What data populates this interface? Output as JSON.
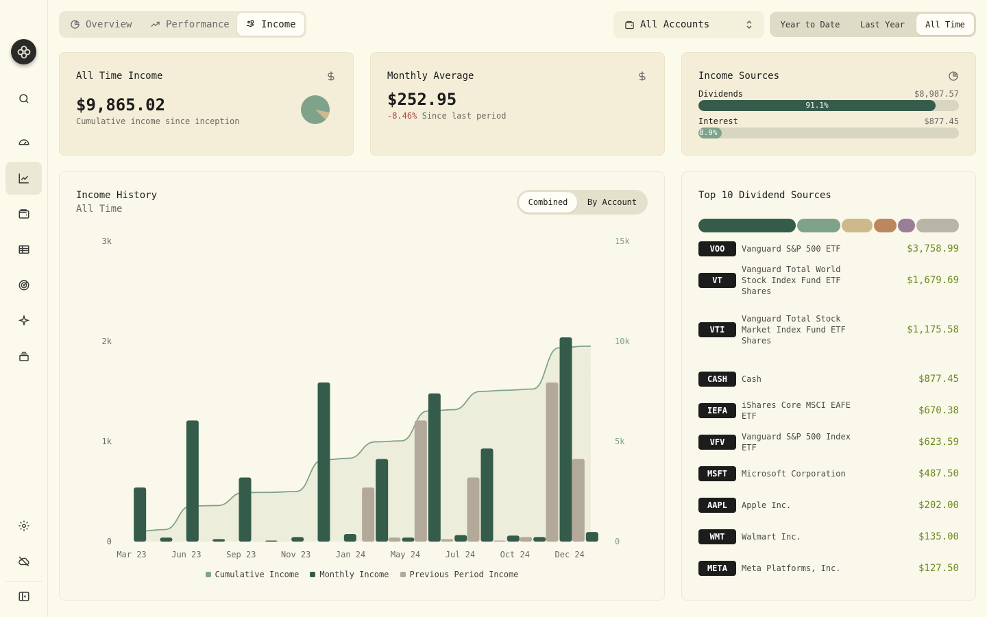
{
  "tabs": [
    {
      "label": "Overview",
      "icon": "pie-chart-icon",
      "active": false
    },
    {
      "label": "Performance",
      "icon": "trending-up-icon",
      "active": false
    },
    {
      "label": "Income",
      "icon": "hand-coins-icon",
      "active": true
    }
  ],
  "account_select": {
    "value": "All Accounts"
  },
  "ranges": [
    {
      "label": "Year to Date",
      "active": false
    },
    {
      "label": "Last Year",
      "active": false
    },
    {
      "label": "All Time",
      "active": true
    }
  ],
  "sidebar": [
    {
      "name": "search-icon"
    },
    {
      "name": "gauge-icon"
    },
    {
      "name": "chart-icon",
      "active": true
    },
    {
      "name": "wallet-icon"
    },
    {
      "name": "ledger-icon"
    },
    {
      "name": "target-icon"
    },
    {
      "name": "sparkles-icon"
    },
    {
      "name": "archive-icon"
    },
    {
      "name": "gear-icon"
    },
    {
      "name": "cloud-off-icon"
    },
    {
      "name": "sidebar-toggle-icon"
    }
  ],
  "all_time_income": {
    "title": "All Time Income",
    "value": "$9,865.02",
    "subtitle": "Cumulative income since inception"
  },
  "monthly_average": {
    "title": "Monthly Average",
    "value": "$252.95",
    "change": "-8.46%",
    "change_suffix": "Since last period"
  },
  "income_sources": {
    "title": "Income Sources",
    "items": [
      {
        "label": "Dividends",
        "value": "$8,987.57",
        "pct_label": "91.1%",
        "pct": 91.1,
        "color": "#355c4b"
      },
      {
        "label": "Interest",
        "value": "$877.45",
        "pct_label": "8.9%",
        "pct": 8.9,
        "color": "#7fa38a"
      }
    ]
  },
  "income_history": {
    "title": "Income History",
    "subtitle": "All Time",
    "toggle": [
      {
        "label": "Combined",
        "active": true
      },
      {
        "label": "By Account",
        "active": false
      }
    ],
    "legend": [
      {
        "label": "Cumulative Income",
        "color": "#7fa38a"
      },
      {
        "label": "Monthly Income",
        "color": "#355c4b"
      },
      {
        "label": "Previous Period Income",
        "color": "#b3a99a"
      }
    ]
  },
  "chart_data": {
    "type": "bar",
    "x_tick_labels": [
      "Mar 23",
      "Jun 23",
      "Sep 23",
      "Nov 23",
      "Jan 24",
      "May 24",
      "Jul 24",
      "Oct 24",
      "Dec 24"
    ],
    "y_left_ticks": [
      "0",
      "1k",
      "2k",
      "3k"
    ],
    "y_right_ticks": [
      "0",
      "5k",
      "10k",
      "15k"
    ],
    "ylim_left": [
      0,
      3000
    ],
    "ylim_right": [
      0,
      15000
    ],
    "series": [
      {
        "name": "Monthly Income",
        "type": "bar",
        "values": [
          540,
          40,
          1210,
          25,
          640,
          10,
          45,
          1590,
          75,
          825,
          40,
          1480,
          65,
          930,
          60,
          45,
          2040,
          95
        ]
      },
      {
        "name": "Previous Period Income",
        "type": "bar",
        "values": [
          0,
          0,
          0,
          0,
          0,
          0,
          0,
          0,
          0,
          540,
          40,
          1210,
          25,
          640,
          10,
          45,
          1590,
          825
        ]
      },
      {
        "name": "Cumulative Income",
        "type": "line",
        "values": [
          520,
          600,
          1780,
          1800,
          2450,
          2460,
          2500,
          4080,
          4160,
          4980,
          5030,
          6520,
          6590,
          7500,
          7560,
          7620,
          9680,
          9760
        ]
      }
    ]
  },
  "top_dividends": {
    "title": "Top 10 Dividend Sources",
    "allocation": [
      {
        "weight": 37.5,
        "color": "#355c4b"
      },
      {
        "weight": 16.8,
        "color": "#7fa38a"
      },
      {
        "weight": 11.8,
        "color": "#cdb98b"
      },
      {
        "weight": 8.8,
        "color": "#bc875c"
      },
      {
        "weight": 6.7,
        "color": "#9a7d96"
      },
      {
        "weight": 16.4,
        "color": "#b9b5a6"
      }
    ],
    "items": [
      {
        "ticker": "VOO",
        "name": "Vanguard S&P 500 ETF",
        "amount": "$3,758.99"
      },
      {
        "ticker": "VT",
        "name": "Vanguard Total World Stock Index Fund ETF Shares",
        "amount": "$1,679.69"
      },
      {
        "ticker": "VTI",
        "name": "Vanguard Total Stock Market Index Fund ETF Shares",
        "amount": "$1,175.58"
      },
      {
        "ticker": "CASH",
        "name": "Cash",
        "amount": "$877.45"
      },
      {
        "ticker": "IEFA",
        "name": "iShares Core MSCI EAFE ETF",
        "amount": "$670.38"
      },
      {
        "ticker": "VFV",
        "name": "Vanguard S&P 500 Index ETF",
        "amount": "$623.59"
      },
      {
        "ticker": "MSFT",
        "name": "Microsoft Corporation",
        "amount": "$487.50"
      },
      {
        "ticker": "AAPL",
        "name": "Apple Inc.",
        "amount": "$202.00"
      },
      {
        "ticker": "WMT",
        "name": "Walmart Inc.",
        "amount": "$135.00"
      },
      {
        "ticker": "META",
        "name": "Meta Platforms, Inc.",
        "amount": "$127.50"
      }
    ]
  }
}
